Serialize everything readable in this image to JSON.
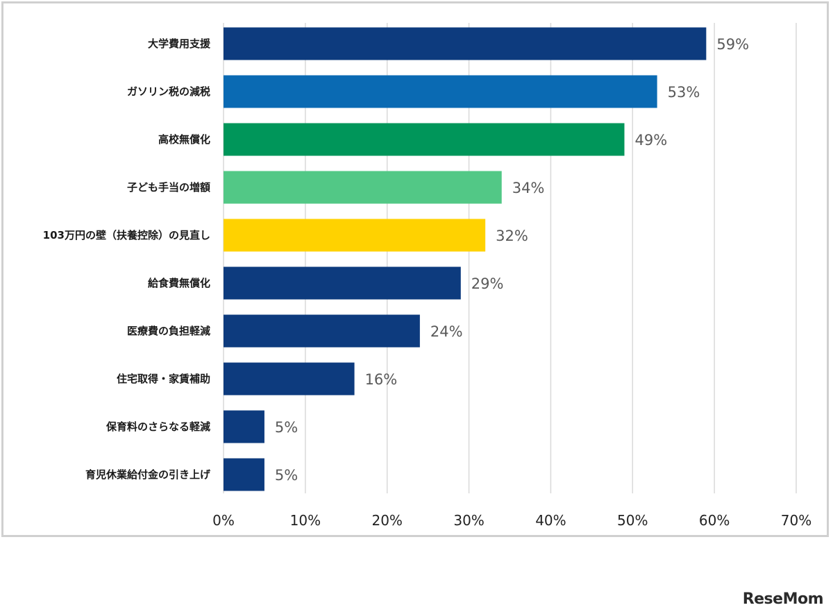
{
  "chart_data": {
    "type": "bar",
    "orientation": "horizontal",
    "categories": [
      "大学費用支援",
      "ガソリン税の減税",
      "高校無償化",
      "子ども手当の増額",
      "103万円の壁（扶養控除）の見直し",
      "給食費無償化",
      "医療費の負担軽減",
      "住宅取得・家賃補助",
      "保育料のさらなる軽減",
      "育児休業給付金の引き上げ"
    ],
    "values": [
      59,
      53,
      49,
      34,
      32,
      29,
      24,
      16,
      5,
      5
    ],
    "value_labels": [
      "59%",
      "53%",
      "49%",
      "34%",
      "32%",
      "29%",
      "24%",
      "16%",
      "5%",
      "5%"
    ],
    "colors": [
      "#0d3b7e",
      "#0a6ab3",
      "#00965a",
      "#52c886",
      "#ffd200",
      "#0d3b7e",
      "#0d3b7e",
      "#0d3b7e",
      "#0d3b7e",
      "#0d3b7e"
    ],
    "xlim": [
      0,
      70
    ],
    "xticks": [
      0,
      10,
      20,
      30,
      40,
      50,
      60,
      70
    ],
    "xtick_labels": [
      "0%",
      "10%",
      "20%",
      "30%",
      "40%",
      "50%",
      "60%",
      "70%"
    ],
    "grid": "vertical",
    "legend": "none"
  },
  "watermark": "ReseMom"
}
